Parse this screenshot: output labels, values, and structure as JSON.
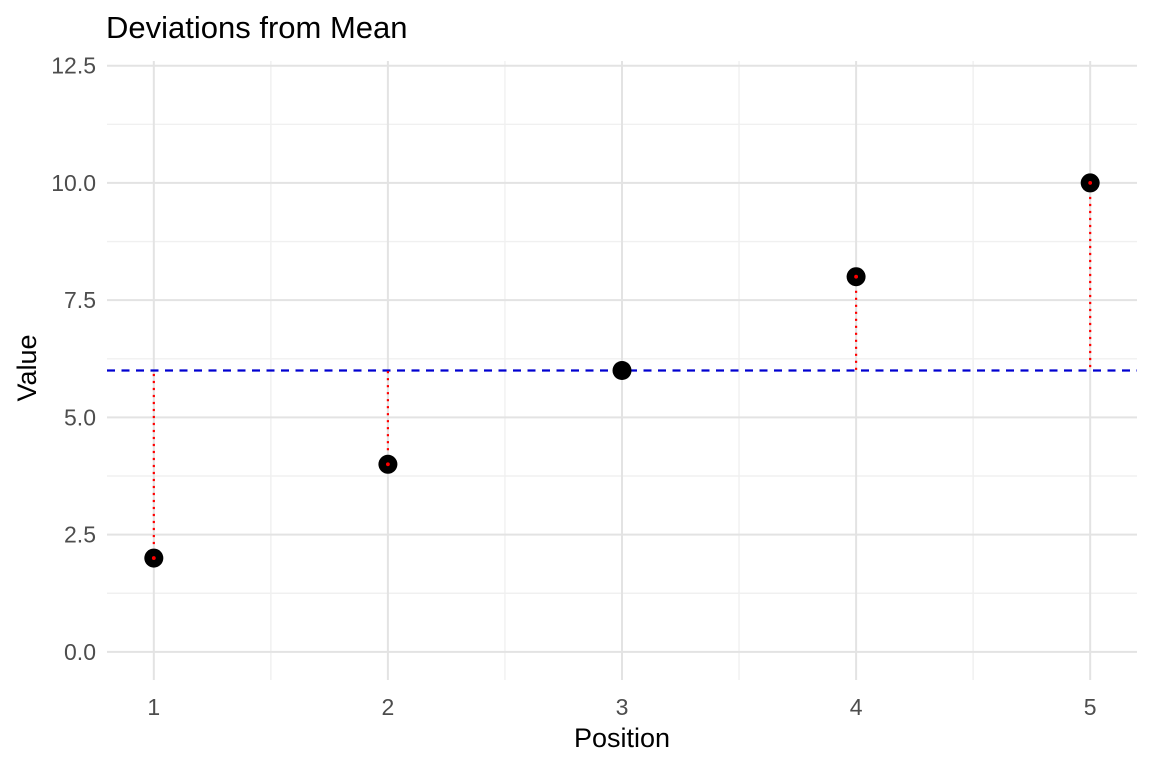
{
  "chart_data": {
    "type": "scatter",
    "title": "Deviations from Mean",
    "xlabel": "Position",
    "ylabel": "Value",
    "x": [
      1,
      2,
      3,
      4,
      5
    ],
    "y": [
      2,
      4,
      6,
      8,
      10
    ],
    "mean_line": {
      "value": 6,
      "style": "dashed",
      "color": "#0000D0"
    },
    "deviation_segments": {
      "style": "dotted",
      "color": "#FF0000",
      "from_each_point_to": "mean_line"
    },
    "points": {
      "color": "#000000",
      "center_dot_color": "#FF0000"
    },
    "x_ticks": {
      "values": [
        1,
        2,
        3,
        4,
        5
      ],
      "labels": [
        "1",
        "2",
        "3",
        "4",
        "5"
      ]
    },
    "y_ticks": {
      "values": [
        0,
        2.5,
        5,
        7.5,
        10,
        12.5
      ],
      "labels": [
        "0.0",
        "2.5",
        "5.0",
        "7.5",
        "10.0",
        "12.5"
      ]
    },
    "x_minor": [
      1.5,
      2.5,
      3.5,
      4.5
    ],
    "y_minor": [
      1.25,
      3.75,
      6.25,
      8.75,
      11.25
    ],
    "xlim": [
      0.8,
      5.2
    ],
    "ylim": [
      -0.6,
      12.6
    ],
    "grid": true,
    "legend": false,
    "background": "#FFFFFF",
    "grid_major_color": "#E3E3E3",
    "grid_minor_color": "#F0F0F0",
    "tick_label_color": "#4D4D4D"
  }
}
